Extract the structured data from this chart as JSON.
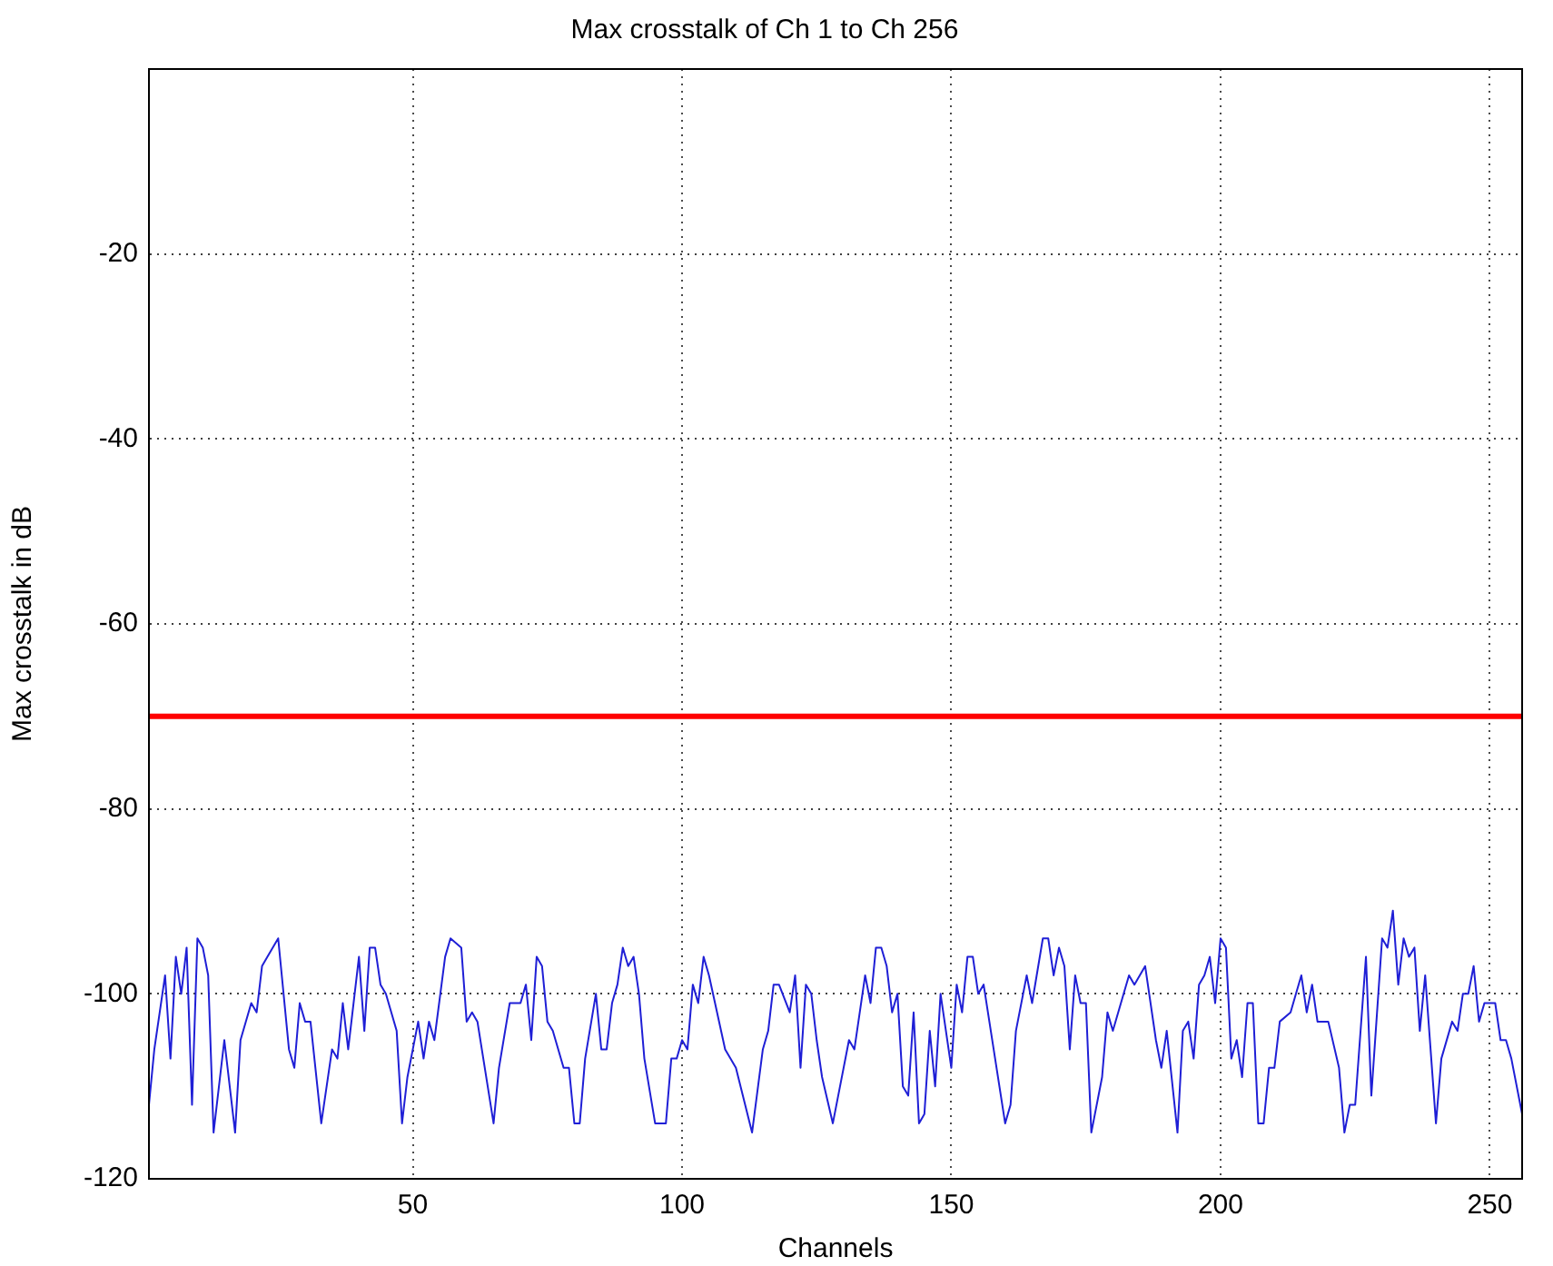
{
  "chart_data": {
    "type": "line",
    "title": "Max crosstalk of Ch 1 to Ch 256",
    "xlabel": "Channels",
    "ylabel": "Max crosstalk in dB",
    "x": [
      1,
      2,
      4,
      5,
      6,
      7,
      8,
      9,
      10,
      11,
      12,
      13,
      15,
      17,
      18,
      20,
      21,
      22,
      23,
      25,
      27,
      28,
      29,
      30,
      31,
      33,
      35,
      36,
      37,
      38,
      40,
      41,
      42,
      43,
      44,
      45,
      47,
      48,
      49,
      51,
      52,
      53,
      54,
      56,
      57,
      59,
      60,
      61,
      62,
      65,
      66,
      68,
      69,
      70,
      71,
      72,
      73,
      74,
      75,
      76,
      78,
      79,
      80,
      81,
      82,
      84,
      85,
      86,
      87,
      88,
      89,
      90,
      91,
      92,
      93,
      95,
      97,
      98,
      99,
      100,
      101,
      102,
      103,
      104,
      105,
      108,
      110,
      113,
      115,
      116,
      117,
      118,
      120,
      121,
      122,
      123,
      124,
      125,
      126,
      128,
      129,
      131,
      132,
      134,
      135,
      136,
      137,
      138,
      139,
      140,
      141,
      142,
      143,
      144,
      145,
      146,
      147,
      148,
      150,
      151,
      152,
      153,
      154,
      155,
      156,
      160,
      161,
      162,
      164,
      165,
      167,
      168,
      169,
      170,
      171,
      172,
      173,
      174,
      175,
      176,
      178,
      179,
      180,
      182,
      183,
      184,
      186,
      188,
      189,
      190,
      192,
      193,
      194,
      195,
      196,
      197,
      198,
      199,
      200,
      201,
      202,
      203,
      204,
      205,
      206,
      207,
      208,
      209,
      210,
      211,
      213,
      214,
      215,
      216,
      217,
      218,
      220,
      222,
      223,
      224,
      225,
      227,
      228,
      230,
      231,
      232,
      233,
      234,
      235,
      236,
      237,
      238,
      240,
      241,
      243,
      244,
      245,
      246,
      247,
      248,
      249,
      251,
      252,
      253,
      254,
      256
    ],
    "series": [
      {
        "color": "#1f1fd6",
        "values": [
          -112,
          -106,
          -98,
          -107,
          -96,
          -100,
          -95,
          -112,
          -94,
          -95,
          -98,
          -115,
          -105,
          -115,
          -105,
          -101,
          -102,
          -97,
          -96,
          -94,
          -106,
          -108,
          -101,
          -103,
          -103,
          -114,
          -106,
          -107,
          -101,
          -106,
          -96,
          -104,
          -95,
          -95,
          -99,
          -100,
          -104,
          -114,
          -109,
          -103,
          -107,
          -103,
          -105,
          -96,
          -94,
          -95,
          -103,
          -102,
          -103,
          -114,
          -108,
          -101,
          -101,
          -101,
          -99,
          -105,
          -96,
          -97,
          -103,
          -104,
          -108,
          -108,
          -114,
          -114,
          -107,
          -100,
          -106,
          -106,
          -101,
          -99,
          -95,
          -97,
          -96,
          -100,
          -107,
          -114,
          -114,
          -107,
          -107,
          -105,
          -106,
          -99,
          -101,
          -96,
          -98,
          -106,
          -108,
          -115,
          -106,
          -104,
          -99,
          -99,
          -102,
          -98,
          -108,
          -99,
          -100,
          -105,
          -109,
          -114,
          -111,
          -105,
          -106,
          -98,
          -101,
          -95,
          -95,
          -97,
          -102,
          -100,
          -110,
          -111,
          -102,
          -114,
          -113,
          -104,
          -110,
          -100,
          -108,
          -99,
          -102,
          -96,
          -96,
          -100,
          -99,
          -114,
          -112,
          -104,
          -98,
          -101,
          -94,
          -94,
          -98,
          -95,
          -97,
          -106,
          -98,
          -101,
          -101,
          -115,
          -109,
          -102,
          -104,
          -100,
          -98,
          -99,
          -97,
          -105,
          -108,
          -104,
          -115,
          -104,
          -103,
          -107,
          -99,
          -98,
          -96,
          -101,
          -94,
          -95,
          -107,
          -105,
          -109,
          -101,
          -101,
          -114,
          -114,
          -108,
          -108,
          -103,
          -102,
          -100,
          -98,
          -102,
          -99,
          -103,
          -103,
          -108,
          -115,
          -112,
          -112,
          -96,
          -111,
          -94,
          -95,
          -91,
          -99,
          -94,
          -96,
          -95,
          -104,
          -98,
          -114,
          -107,
          -103,
          -104,
          -100,
          -100,
          -97,
          -103,
          -101,
          -101,
          -105,
          -105,
          -107,
          -113
        ]
      }
    ],
    "xlim": [
      1,
      256
    ],
    "xticks": [
      50,
      100,
      150,
      200,
      250
    ],
    "ylim": [
      -120,
      0
    ],
    "yticks": [
      -120,
      -100,
      -80,
      -60,
      -40,
      -20
    ],
    "grid": true,
    "legend": false,
    "marker": "none",
    "ref_lines": [
      {
        "axis": "y",
        "value": -70,
        "color": "#ff0000"
      }
    ]
  }
}
